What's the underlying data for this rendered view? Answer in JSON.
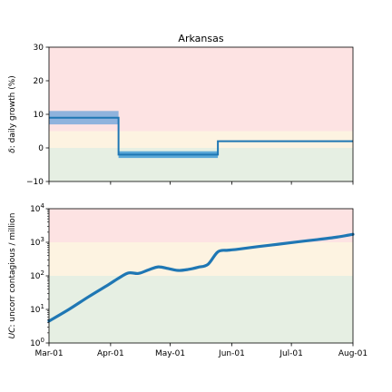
{
  "chart_data": [
    {
      "type": "line",
      "title": "Arkansas",
      "ylabel_symbol": "δ",
      "ylabel_rest": ": daily growth (%)",
      "ylim": [
        -10,
        30
      ],
      "yticks": [
        -10,
        0,
        10,
        20,
        30
      ],
      "ytick_labels": [
        "−10",
        "0",
        "10",
        "20",
        "30"
      ],
      "xlim": [
        "2020-03-01",
        "2020-08-01"
      ],
      "grid": false,
      "zones": [
        {
          "y0": -10,
          "y1": 0,
          "color": "#e6efe3"
        },
        {
          "y0": 0,
          "y1": 5,
          "color": "#fdf3e1"
        },
        {
          "y0": 5,
          "y1": 30,
          "color": "#fde3e3"
        }
      ],
      "bands": [
        {
          "x0": "2020-03-01",
          "x1": "2020-04-05",
          "y0": 7,
          "y1": 11,
          "color": "#8fb3dd"
        },
        {
          "x0": "2020-04-05",
          "x1": "2020-05-25",
          "y0": -3,
          "y1": -1,
          "color": "#5ba8d8"
        }
      ],
      "series": [
        {
          "color": "#1f77b4",
          "step_segments": [
            {
              "x0": "2020-03-01",
              "x1": "2020-04-05",
              "y": 9
            },
            {
              "x0": "2020-04-05",
              "x1": "2020-05-25",
              "y": -2
            },
            {
              "x0": "2020-05-25",
              "x1": "2020-08-01",
              "y": 2
            }
          ]
        }
      ]
    },
    {
      "type": "line",
      "ylabel_symbol": "UC",
      "ylabel_rest": ": uncorr contagious / million",
      "yscale": "log",
      "ylim": [
        1,
        10000
      ],
      "yticks": [
        1,
        10,
        100,
        1000,
        10000
      ],
      "ytick_base": "10",
      "ytick_exps": [
        "0",
        "1",
        "2",
        "3",
        "4"
      ],
      "xlim": [
        "2020-03-01",
        "2020-08-01"
      ],
      "xticks": [
        "2020-03-01",
        "2020-04-01",
        "2020-05-01",
        "2020-06-01",
        "2020-07-01",
        "2020-08-01"
      ],
      "xtick_labels": [
        "Mar-01",
        "Apr-01",
        "May-01",
        "Jun-01",
        "Jul-01",
        "Aug-01"
      ],
      "grid": false,
      "zones": [
        {
          "y0": 1,
          "y1": 100,
          "color": "#e6efe3"
        },
        {
          "y0": 100,
          "y1": 1000,
          "color": "#fdf3e1"
        },
        {
          "y0": 1000,
          "y1": 10000,
          "color": "#fde3e3"
        }
      ],
      "series": [
        {
          "color": "#1f77b4",
          "x": [
            "2020-03-01",
            "2020-03-11",
            "2020-03-21",
            "2020-03-31",
            "2020-04-05",
            "2020-04-10",
            "2020-04-15",
            "2020-04-20",
            "2020-04-25",
            "2020-04-30",
            "2020-05-05",
            "2020-05-10",
            "2020-05-15",
            "2020-05-20",
            "2020-05-25",
            "2020-05-30",
            "2020-06-04",
            "2020-06-14",
            "2020-06-24",
            "2020-07-04",
            "2020-07-14",
            "2020-07-24",
            "2020-08-01"
          ],
          "y": [
            4.5,
            10,
            24,
            55,
            85,
            122,
            118,
            150,
            185,
            165,
            145,
            155,
            180,
            220,
            520,
            580,
            620,
            740,
            870,
            1030,
            1200,
            1430,
            1730
          ]
        }
      ]
    }
  ]
}
